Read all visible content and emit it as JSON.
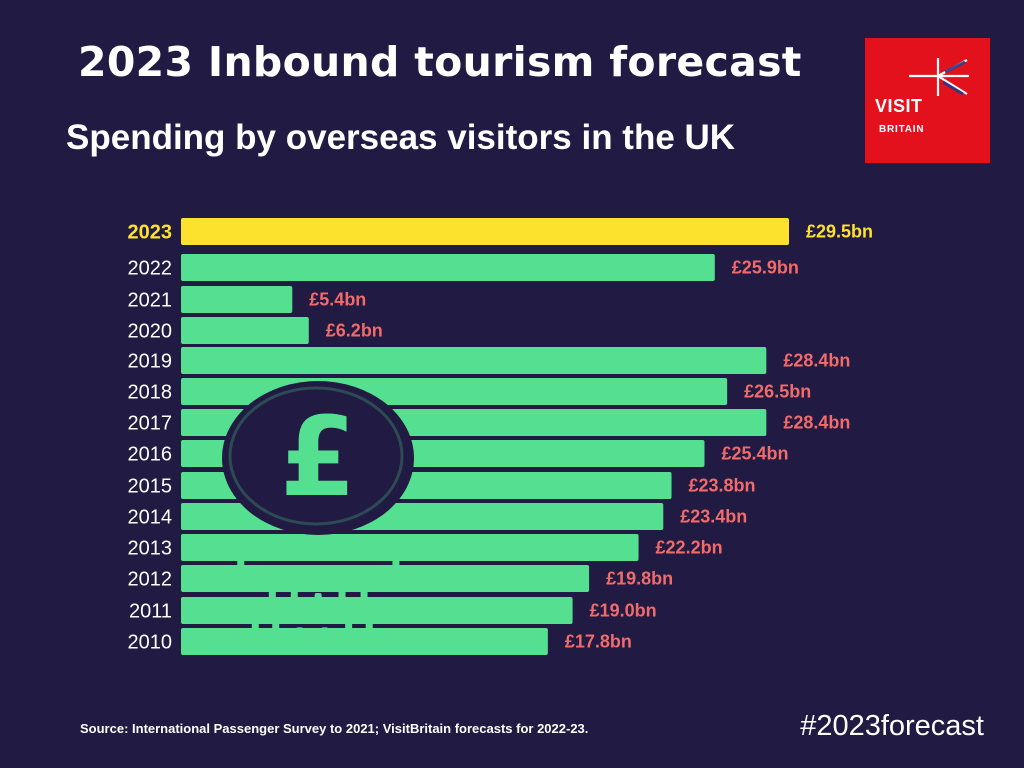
{
  "title": "2023 Inbound tourism forecast",
  "subtitle": "Spending by overseas visitors in the UK",
  "logo": {
    "line1": "VISIT",
    "line2": "BRITAIN",
    "background": "#e3111b"
  },
  "source": "Source: International Passenger Survey to 2021; VisitBritain forecasts for 2022-23.",
  "hashtag": "#2023forecast",
  "colors": {
    "background": "#211a42",
    "bar": "#55e091",
    "highlight_bar": "#fde22d",
    "value_label": "#f26b6b",
    "highlight_label": "#fde22d",
    "coin": "#211a42"
  },
  "decoration": {
    "icon": "pound-coin-stack-icon"
  },
  "chart_data": {
    "type": "bar",
    "orientation": "horizontal",
    "categories": [
      "2023",
      "2022",
      "2021",
      "2020",
      "2019",
      "2018",
      "2017",
      "2016",
      "2015",
      "2014",
      "2013",
      "2012",
      "2011",
      "2010"
    ],
    "values": [
      29.5,
      25.9,
      5.4,
      6.2,
      28.4,
      26.5,
      28.4,
      25.4,
      23.8,
      23.4,
      22.2,
      19.8,
      19.0,
      17.8
    ],
    "labels": [
      "£29.5bn",
      "£25.9bn",
      "£5.4bn",
      "£6.2bn",
      "£28.4bn",
      "£26.5bn",
      "£28.4bn",
      "£25.4bn",
      "£23.8bn",
      "£23.4bn",
      "£22.2bn",
      "£19.8bn",
      "£19.0bn",
      "£17.8bn"
    ],
    "highlight": "2023",
    "unit": "£bn",
    "xlim": [
      0,
      29.5
    ],
    "grid": false,
    "axes_visible": false
  }
}
